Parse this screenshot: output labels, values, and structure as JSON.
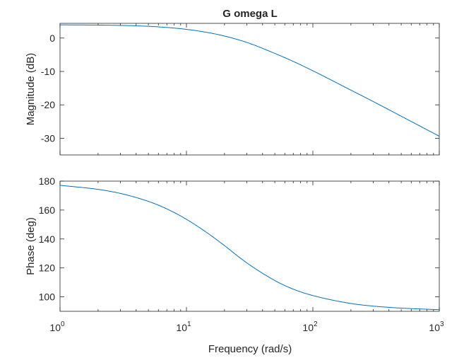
{
  "chart_data": [
    {
      "type": "line",
      "title": "G omega L",
      "xlabel": "",
      "ylabel": "Magnitude (dB)",
      "xscale": "log",
      "xlim": [
        1,
        1000
      ],
      "ylim": [
        -35,
        4.4
      ],
      "yticks": [
        0,
        -10,
        -20,
        -30
      ],
      "x": [
        1,
        2,
        3,
        5,
        7,
        10,
        15,
        20,
        30,
        50,
        70,
        100,
        200,
        300,
        500,
        1000
      ],
      "series": [
        {
          "name": "",
          "color": "#0072BD",
          "values": [
            3.95,
            3.88,
            3.78,
            3.51,
            3.17,
            2.6,
            1.6,
            0.6,
            -1.3,
            -4.6,
            -7.0,
            -9.8,
            -15.6,
            -19.0,
            -23.4,
            -29.4
          ]
        }
      ],
      "grid": false
    },
    {
      "type": "line",
      "title": "",
      "xlabel": "Frequency (rad/s)",
      "ylabel": "Phase (deg)",
      "xscale": "log",
      "xlim": [
        1,
        1000
      ],
      "ylim": [
        90,
        180
      ],
      "yticks": [
        100,
        120,
        140,
        160,
        180
      ],
      "xticks": [
        1,
        10,
        100,
        1000
      ],
      "xtick_bases": [
        "10",
        "10",
        "10",
        "10"
      ],
      "xtick_exps": [
        "0",
        "1",
        "2",
        "3"
      ],
      "x": [
        1,
        2,
        3,
        5,
        7,
        10,
        15,
        20,
        30,
        50,
        70,
        100,
        200,
        300,
        500,
        1000
      ],
      "series": [
        {
          "name": "",
          "color": "#0072BD",
          "values": [
            177.1,
            174.3,
            171.5,
            166.0,
            160.8,
            153.6,
            143.5,
            135.4,
            123.5,
            111.3,
            105.3,
            100.9,
            95.4,
            93.6,
            92.2,
            91.1
          ]
        }
      ],
      "grid": false
    }
  ]
}
